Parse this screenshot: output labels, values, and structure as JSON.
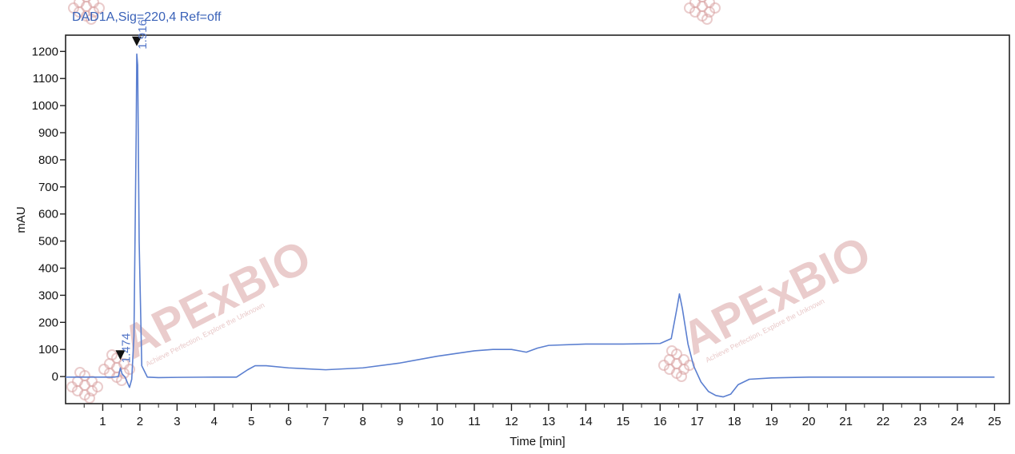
{
  "chart_data": {
    "type": "line",
    "title": "DAD1A,Sig=220,4  Ref=off",
    "xlabel": "Time [min]",
    "ylabel": "mAU",
    "xlim": [
      0.0,
      25.4
    ],
    "ylim": [
      -100,
      1260
    ],
    "xticks": [
      "1",
      "2",
      "3",
      "4",
      "5",
      "6",
      "7",
      "8",
      "9",
      "10",
      "11",
      "12",
      "13",
      "14",
      "15",
      "16",
      "17",
      "18",
      "19",
      "20",
      "21",
      "22",
      "23",
      "24",
      "25"
    ],
    "yticks": [
      "0",
      "100",
      "200",
      "300",
      "400",
      "500",
      "600",
      "700",
      "800",
      "900",
      "1000",
      "1100",
      "1200"
    ],
    "grid": false,
    "series": [
      {
        "color": "#5b7fd0",
        "x": [
          0.0,
          1.0,
          1.3,
          1.42,
          1.474,
          1.52,
          1.6,
          1.72,
          1.78,
          1.84,
          1.9,
          1.916,
          1.94,
          1.98,
          2.05,
          2.2,
          2.5,
          3.0,
          4.0,
          4.6,
          4.9,
          5.1,
          5.4,
          6.0,
          7.0,
          8.0,
          9.0,
          10.0,
          11.0,
          11.5,
          12.0,
          12.2,
          12.4,
          12.7,
          13.0,
          14.0,
          15.0,
          16.0,
          16.3,
          16.45,
          16.52,
          16.6,
          16.75,
          16.9,
          17.1,
          17.3,
          17.5,
          17.7,
          17.9,
          18.1,
          18.4,
          19.0,
          20.0,
          21.0,
          22.0,
          23.0,
          24.0,
          25.0
        ],
        "y": [
          -2,
          -2,
          -2,
          0,
          32,
          10,
          -2,
          -40,
          -10,
          150,
          900,
          1190,
          1150,
          500,
          40,
          -2,
          -4,
          -3,
          -2,
          -2,
          25,
          40,
          40,
          32,
          25,
          32,
          50,
          75,
          95,
          100,
          100,
          95,
          90,
          105,
          115,
          120,
          120,
          122,
          140,
          250,
          305,
          250,
          120,
          40,
          -20,
          -55,
          -70,
          -75,
          -65,
          -30,
          -10,
          -5,
          -2,
          -2,
          -2,
          -2,
          -2,
          -2
        ]
      }
    ],
    "peaks": [
      {
        "x": 1.474,
        "y": 32,
        "label": "1.474"
      },
      {
        "x": 1.916,
        "y": 1190,
        "label": "1.916"
      }
    ]
  },
  "watermark": {
    "brand": "APExBIO",
    "tagline": "Achieve Perfection, Explore the Unknown",
    "color": "#d9a3a3"
  }
}
